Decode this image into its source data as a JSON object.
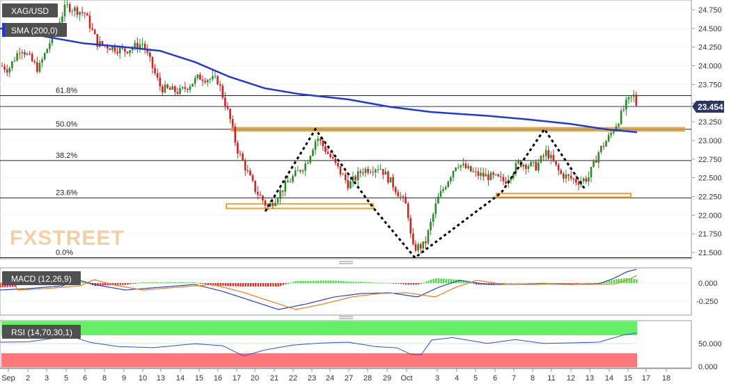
{
  "chart_data": [
    {
      "type": "candlestick",
      "symbol": "XAG/USD",
      "indicator_label": "SMA (200,0)",
      "watermark": "FXSTREET",
      "y_ticks": [
        "24.750",
        "24.500",
        "24.250",
        "24.000",
        "23.750",
        "23.500",
        "23.250",
        "23.000",
        "22.750",
        "22.500",
        "22.250",
        "22.000",
        "21.750",
        "21.500"
      ],
      "ylim": [
        21.4,
        24.9
      ],
      "x_ticks": [
        "Sep",
        "2",
        "3",
        "5",
        "6",
        "8",
        "9",
        "10",
        "13",
        "14",
        "15",
        "16",
        "17",
        "20",
        "21",
        "22",
        "23",
        "24",
        "27",
        "28",
        "29",
        "Oct",
        "3",
        "4",
        "5",
        "6",
        "7",
        "8",
        "11",
        "12",
        "13",
        "14",
        "15",
        "17",
        "18"
      ],
      "last_price": "23.454",
      "fib_levels": [
        {
          "label": "61.8%",
          "value": 23.6
        },
        {
          "label": "50.0%",
          "value": 23.15
        },
        {
          "label": "38.2%",
          "value": 22.73
        },
        {
          "label": "23.6%",
          "value": 22.23
        },
        {
          "label": "0.0%",
          "value": 21.43
        }
      ],
      "highlight_zones": [
        {
          "name": "resistance",
          "from": 23.13,
          "to": 23.17
        },
        {
          "name": "support-left",
          "from": 22.09,
          "to": 22.15
        },
        {
          "name": "support-right",
          "from": 22.24,
          "to": 22.29
        }
      ],
      "ohlc_summary": {
        "open": 24.1,
        "high": 24.85,
        "low": 21.43,
        "close": 23.454
      },
      "sma200_path": [
        24.5,
        24.4,
        24.3,
        24.25,
        24.2,
        24.05,
        23.85,
        23.7,
        23.62,
        23.55,
        23.45,
        23.38,
        23.33,
        23.28,
        23.22,
        23.15,
        23.11
      ]
    },
    {
      "type": "macd",
      "label": "MACD (12,26,9)",
      "y_ticks": [
        "0.000",
        "-0.250"
      ]
    },
    {
      "type": "rsi",
      "label": "RSI (14,70,30,1)",
      "y_ticks": [
        "50.000",
        "0.000"
      ]
    }
  ],
  "colors": {
    "bull": "#2a8a2a",
    "bear": "#cc2222",
    "sma": "#1f3ad6",
    "zone": "#f0a030",
    "macd_line": "#2244cc",
    "signal_line": "#ee7a20",
    "hist_pos": "#44dd44",
    "hist_neg": "#ee2222",
    "rsi_line": "#2255dd",
    "rsi_over": "#66ee66",
    "rsi_under": "#ff7777",
    "label_bg": "#505050"
  }
}
